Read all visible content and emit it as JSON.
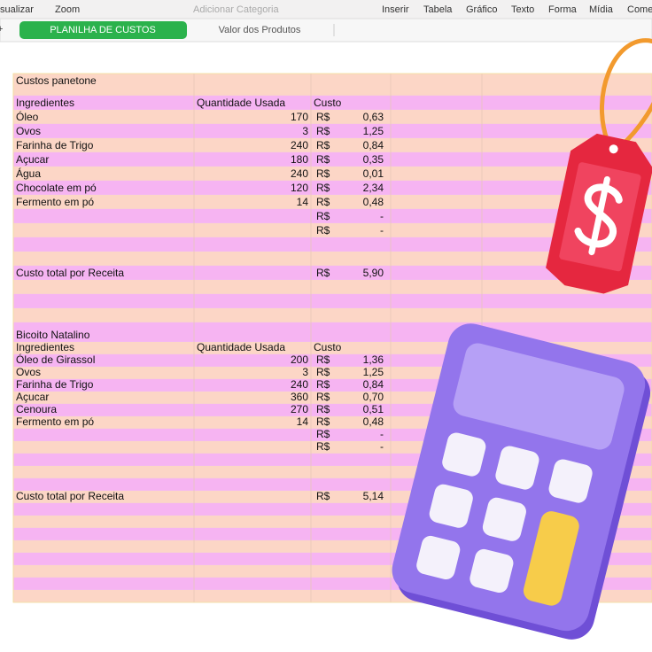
{
  "toolbar": {
    "items": [
      "sualizar",
      "Zoom",
      "Adicionar Categoria",
      "Inserir",
      "Tabela",
      "Gráfico",
      "Texto",
      "Forma",
      "Mídia",
      "Come"
    ]
  },
  "tabs": {
    "add": "+",
    "active": "PLANILHA DE CUSTOS",
    "other": "Valor dos Produtos"
  },
  "sheet": {
    "rows": [
      {
        "name": "Custos panetone"
      },
      {
        "name": "Ingredientes",
        "qty": "Quantidade Usada",
        "cur": "Custo"
      },
      {
        "name": "Óleo",
        "qty": "170",
        "cur": "R$",
        "amt": "0,63"
      },
      {
        "name": "Ovos",
        "qty": "3",
        "cur": "R$",
        "amt": "1,25"
      },
      {
        "name": "Farinha de Trigo",
        "qty": "240",
        "cur": "R$",
        "amt": "0,84"
      },
      {
        "name": "Açucar",
        "qty": "180",
        "cur": "R$",
        "amt": "0,35"
      },
      {
        "name": "Água",
        "qty": "240",
        "cur": "R$",
        "amt": "0,01"
      },
      {
        "name": "Chocolate em pó",
        "qty": "120",
        "cur": "R$",
        "amt": "2,34"
      },
      {
        "name": "Fermento em pó",
        "qty": "14",
        "cur": "R$",
        "amt": "0,48"
      },
      {
        "cur": "R$",
        "amt": "-"
      },
      {
        "cur": "R$",
        "amt": "-"
      },
      {},
      {},
      {
        "name": "Custo total por Receita",
        "cur": "R$",
        "amt": "5,90"
      },
      {},
      {},
      {},
      {
        "name": "Bicoito Natalino"
      },
      {
        "name": "Ingredientes",
        "qty": "Quantidade Usada",
        "cur": "Custo"
      },
      {
        "name": "Óleo de Girassol",
        "qty": "200",
        "cur": "R$",
        "amt": "1,36"
      },
      {
        "name": "Ovos",
        "qty": "3",
        "cur": "R$",
        "amt": "1,25"
      },
      {
        "name": "Farinha de Trigo",
        "qty": "240",
        "cur": "R$",
        "amt": "0,84"
      },
      {
        "name": "Açucar",
        "qty": "360",
        "cur": "R$",
        "amt": "0,70"
      },
      {
        "name": "Cenoura",
        "qty": "270",
        "cur": "R$",
        "amt": "0,51"
      },
      {
        "name": "Fermento em pó",
        "qty": "14",
        "cur": "R$",
        "amt": "0,48"
      },
      {
        "cur": "R$",
        "amt": "-"
      },
      {
        "cur": "R$",
        "amt": "-"
      },
      {},
      {},
      {},
      {
        "name": "Custo total por Receita",
        "cur": "R$",
        "amt": "5,14"
      },
      {},
      {},
      {},
      {},
      {},
      {},
      {},
      {}
    ]
  }
}
